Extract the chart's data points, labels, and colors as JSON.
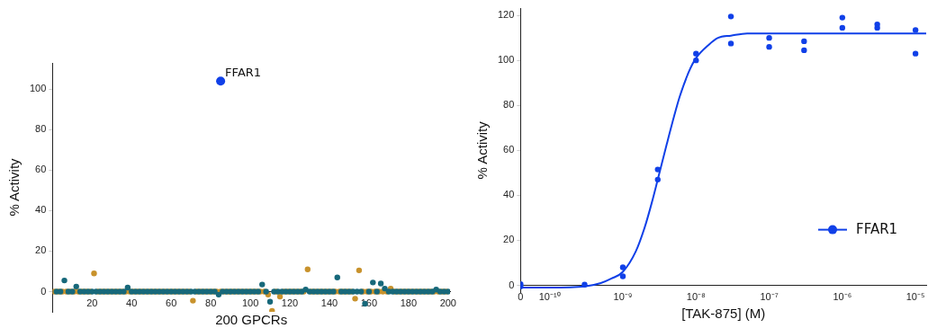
{
  "chart_data": [
    {
      "type": "scatter",
      "xlabel": "200 GPCRs",
      "ylabel": "% Activity",
      "xlim": [
        0,
        201
      ],
      "ylim": [
        -10,
        113
      ],
      "xticks": [
        20,
        40,
        60,
        80,
        100,
        120,
        140,
        160,
        180,
        200
      ],
      "yticks": [
        0,
        20,
        40,
        60,
        80,
        100
      ],
      "grid": false,
      "legend": false,
      "marker": "circle",
      "series": [
        {
          "color": "#17687a",
          "x": [
            2,
            4,
            6,
            8,
            10,
            12,
            14,
            16,
            18,
            20,
            22,
            24,
            26,
            28,
            30,
            32,
            34,
            36,
            38,
            40,
            42,
            44,
            46,
            48,
            50,
            52,
            54,
            56,
            58,
            60,
            62,
            64,
            66,
            68,
            70,
            72,
            74,
            76,
            78,
            80,
            82,
            84,
            86,
            88,
            90,
            92,
            94,
            96,
            98,
            100,
            102,
            104,
            106,
            108,
            110,
            112,
            114,
            116,
            118,
            120,
            122,
            124,
            126,
            128,
            130,
            132,
            134,
            136,
            138,
            140,
            142,
            144,
            146,
            148,
            150,
            152,
            154,
            156,
            158,
            160,
            162,
            164,
            166,
            168,
            170,
            172,
            174,
            176,
            178,
            180,
            182,
            184,
            186,
            188,
            190,
            192,
            194,
            196,
            198,
            200
          ],
          "values": [
            0,
            0,
            5.5,
            0,
            0,
            2.5,
            0,
            0,
            0,
            0,
            0,
            0,
            0,
            0,
            0,
            0,
            0,
            0,
            2,
            0,
            0,
            0,
            0,
            0,
            0,
            0,
            0,
            0,
            0,
            0,
            0,
            0,
            0,
            0,
            0,
            0,
            0,
            0,
            0,
            0,
            0,
            -1.5,
            0,
            0,
            0,
            0,
            0,
            0,
            0,
            0,
            0,
            0,
            3.5,
            0,
            -5,
            0,
            0,
            0,
            0,
            0,
            0,
            0,
            0,
            1,
            0,
            0,
            0,
            0,
            0,
            0,
            0,
            7,
            0,
            0,
            0,
            0,
            0,
            0,
            -6,
            0,
            4.5,
            0,
            4,
            1.5,
            0,
            0,
            0,
            0,
            0,
            0,
            0,
            0,
            0,
            0,
            0,
            0,
            1,
            0,
            0,
            0
          ]
        },
        {
          "color": "#c8922c",
          "x": [
            1,
            3,
            5,
            7,
            9,
            11,
            13,
            15,
            17,
            19,
            21,
            23,
            25,
            27,
            29,
            31,
            33,
            35,
            37,
            39,
            41,
            43,
            45,
            47,
            49,
            51,
            53,
            55,
            57,
            59,
            61,
            63,
            65,
            67,
            69,
            71,
            73,
            75,
            77,
            79,
            81,
            83,
            85,
            87,
            89,
            91,
            93,
            95,
            97,
            99,
            101,
            103,
            105,
            107,
            109,
            111,
            113,
            115,
            117,
            119,
            121,
            123,
            125,
            127,
            129,
            131,
            133,
            135,
            137,
            139,
            141,
            143,
            145,
            147,
            149,
            151,
            153,
            155,
            157,
            159,
            161,
            163,
            165,
            167,
            169,
            171,
            173,
            175,
            177,
            179,
            181,
            183,
            185,
            187,
            189,
            191,
            193,
            195,
            197,
            199
          ],
          "values": [
            0,
            0,
            0,
            0,
            0,
            0,
            0,
            0,
            0,
            0,
            9,
            0,
            0,
            0,
            0,
            0,
            0,
            0,
            0,
            0,
            0,
            0,
            0,
            0,
            0,
            0,
            0,
            0,
            0,
            0,
            0,
            0,
            0,
            0,
            0,
            -4.5,
            0,
            0,
            0,
            0,
            0,
            0,
            0,
            0,
            0,
            0,
            0,
            0,
            0,
            0,
            0,
            0,
            0,
            0,
            -1.5,
            -9.5,
            0,
            -2.5,
            0,
            0,
            0,
            0,
            0,
            0,
            11,
            0,
            0,
            0,
            0,
            0,
            0,
            0,
            0,
            0,
            0,
            0,
            -3.5,
            10.5,
            0,
            0,
            0,
            0,
            0,
            0,
            0,
            1.5,
            0,
            0,
            0,
            0,
            0,
            0,
            0,
            0,
            0,
            0,
            0,
            0,
            0,
            0
          ]
        },
        {
          "color": "#1040e8",
          "x": [
            85
          ],
          "values": [
            104
          ]
        }
      ],
      "annotations": [
        {
          "text": "FFAR1",
          "x": 85,
          "y": 104
        }
      ]
    },
    {
      "type": "scatter",
      "xlabel": "[TAK-875] (M)",
      "ylabel": "% Activity",
      "log": "x",
      "xlim": [
        4e-11,
        1.4e-05
      ],
      "ylim": [
        -3,
        123
      ],
      "xticks": [
        {
          "value": 4e-11,
          "label": "0"
        },
        {
          "value": 1e-10,
          "label": "10⁻¹⁰"
        },
        {
          "value": 1e-09,
          "label": "10⁻⁹"
        },
        {
          "value": 1e-08,
          "label": "10⁻⁸"
        },
        {
          "value": 1e-07,
          "label": "10⁻⁷"
        },
        {
          "value": 1e-06,
          "label": "10⁻⁶"
        },
        {
          "value": 1e-05,
          "label": "10⁻⁵"
        }
      ],
      "yticks": [
        0,
        20,
        40,
        60,
        80,
        100,
        120
      ],
      "grid": false,
      "legend": "right",
      "marker": "circle",
      "series": [
        {
          "name": "FFAR1",
          "color": "#1040e8",
          "x": [
            4e-11,
            4e-11,
            3e-10,
            1e-09,
            1e-09,
            3e-09,
            3e-09,
            1e-08,
            1e-08,
            3e-08,
            3e-08,
            1e-07,
            1e-07,
            3e-07,
            3e-07,
            1e-06,
            1e-06,
            3e-06,
            3e-06,
            1e-05,
            1e-05
          ],
          "values": [
            0.5,
            -0.5,
            0.3,
            8,
            4,
            51.5,
            47,
            103,
            100,
            119.5,
            107.5,
            110,
            106,
            108.5,
            104.5,
            119,
            114.5,
            116,
            114.5,
            113.5,
            103
          ]
        },
        {
          "type": "line",
          "color": "#1040e8",
          "marker": "none",
          "x": [
            4e-11,
            1e-10,
            3e-10,
            5e-10,
            7e-10,
            1e-09,
            1.5e-09,
            2e-09,
            2.5e-09,
            3e-09,
            4e-09,
            5e-09,
            6e-09,
            8e-09,
            1e-08,
            1.5e-08,
            2e-08,
            3e-08,
            5e-08,
            1e-07,
            1e-06,
            1.4e-05
          ],
          "values": [
            -1,
            -1,
            -0.5,
            1,
            3,
            6,
            15,
            26,
            37,
            47,
            63,
            75,
            84,
            95,
            101,
            107,
            110,
            111,
            112,
            112,
            112,
            112
          ]
        }
      ]
    }
  ]
}
